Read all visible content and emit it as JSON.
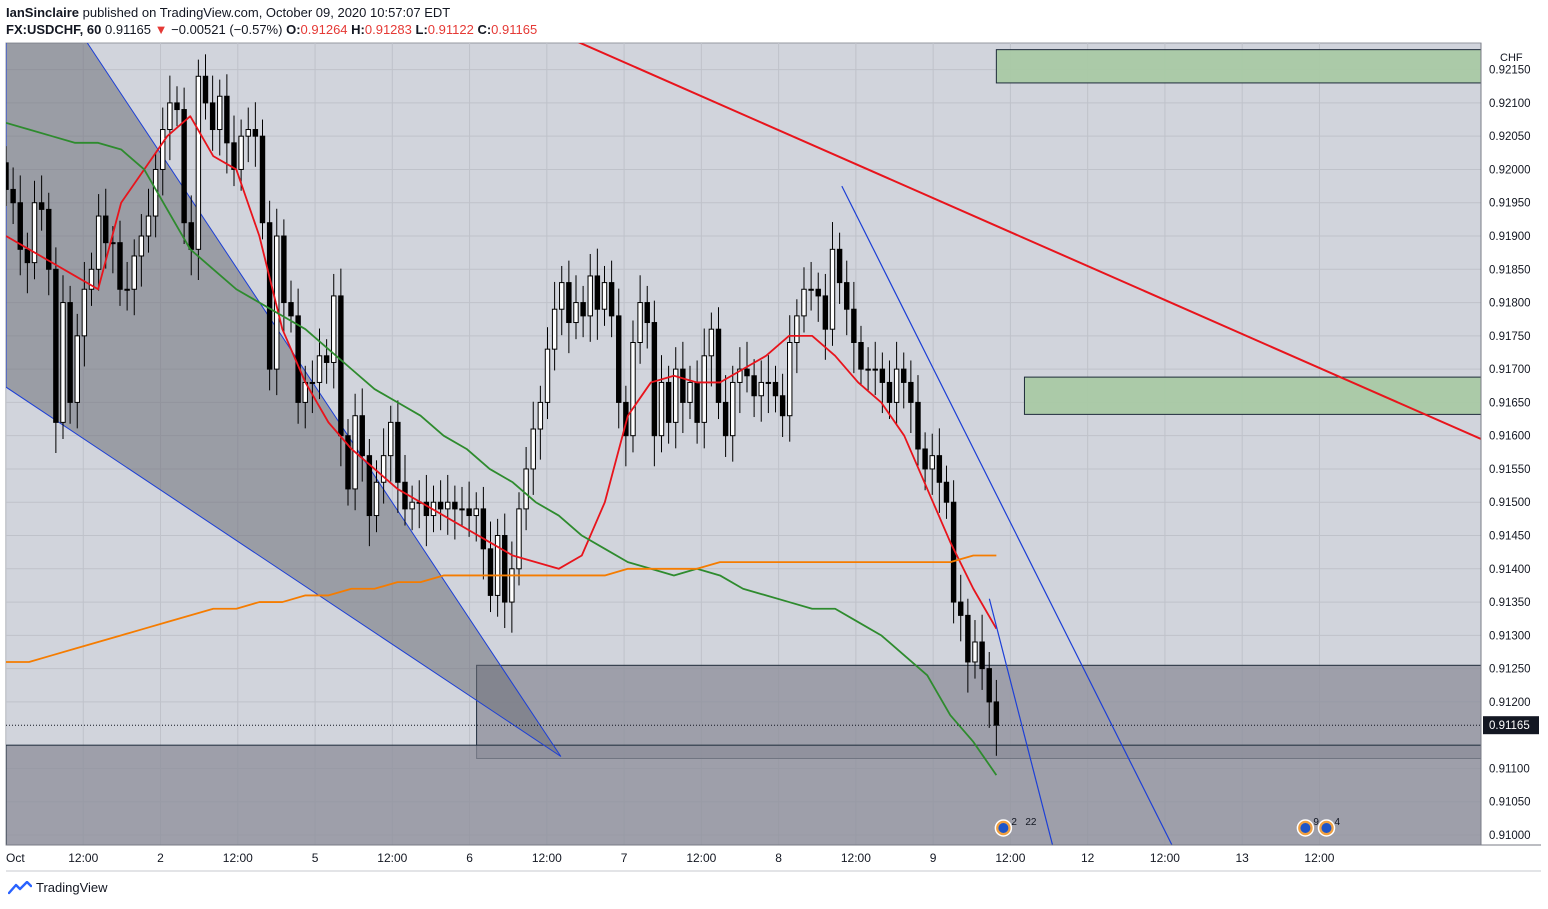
{
  "header": {
    "author": "IanSinclaire",
    "published_text": "published on TradingView.com, October 09, 2020 10:57:07 EDT",
    "symbol": "FX:USDCHF, 60",
    "last": "0.91165",
    "arrow": "▼",
    "change": "−0.00521 (−0.57%)",
    "o_label": "O:",
    "o_value": "0.91264",
    "h_label": "H:",
    "h_value": "0.91283",
    "l_label": "L:",
    "l_value": "0.91122",
    "c_label": "C:",
    "c_value": "0.91165"
  },
  "footer": {
    "brand": "TradingView",
    "logo_icon": "tradingview-logo-icon"
  },
  "colors": {
    "plot_bg": "#d1d4dc",
    "grid": "#bfc2ca",
    "ma_red": "#e8141c",
    "ma_green": "#2e8b2e",
    "ma_orange": "#f57c00",
    "trend_red": "#e8141c",
    "trend_blue": "#1c3fd6",
    "zone_green": "#a9c9a4",
    "zone_gray": "#8c8e9a",
    "wedge_fill": "#6e7079",
    "price_tag_bg": "#131722"
  },
  "chart_data": {
    "type": "candlestick",
    "title": "FX:USDCHF, 60",
    "currency_label": "CHF",
    "y_ticks": [
      "0.92150",
      "0.92100",
      "0.92050",
      "0.92000",
      "0.91950",
      "0.91900",
      "0.91850",
      "0.91800",
      "0.91750",
      "0.91700",
      "0.91650",
      "0.91600",
      "0.91550",
      "0.91500",
      "0.91450",
      "0.91400",
      "0.91350",
      "0.91300",
      "0.91250",
      "0.91200",
      "0.91100",
      "0.91050",
      "0.91000"
    ],
    "ylim": [
      0.90985,
      0.9219
    ],
    "x_ticks": [
      "Oct",
      "12:00",
      "2",
      "12:00",
      "5",
      "12:00",
      "6",
      "12:00",
      "7",
      "12:00",
      "8",
      "12:00",
      "9",
      "12:00",
      "12",
      "12:00",
      "13",
      "12:00"
    ],
    "x_bar_range": [
      0,
      210
    ],
    "x_tick_bars": [
      0,
      11,
      22,
      33,
      44,
      55,
      66,
      77,
      88,
      99,
      110,
      121,
      132,
      143,
      154,
      165,
      176,
      187
    ],
    "current_price": "0.91165",
    "candle_closes": [
      0.9197,
      0.9195,
      0.9188,
      0.9186,
      0.9195,
      0.9194,
      0.9185,
      0.9162,
      0.918,
      0.9165,
      0.9175,
      0.9182,
      0.9185,
      0.9193,
      0.9189,
      0.9189,
      0.9182,
      0.9182,
      0.9187,
      0.919,
      0.9193,
      0.92,
      0.9206,
      0.921,
      0.9209,
      0.9192,
      0.9188,
      0.9214,
      0.921,
      0.9206,
      0.9211,
      0.9204,
      0.92,
      0.9205,
      0.9206,
      0.9205,
      0.9192,
      0.917,
      0.919,
      0.918,
      0.9178,
      0.9165,
      0.9168,
      0.9168,
      0.9172,
      0.9171,
      0.9181,
      0.916,
      0.9152,
      0.9163,
      0.9157,
      0.9148,
      0.9153,
      0.9157,
      0.9162,
      0.9153,
      0.9149,
      0.915,
      0.915,
      0.9148,
      0.915,
      0.9149,
      0.915,
      0.9149,
      0.9149,
      0.9148,
      0.9149,
      0.9143,
      0.9136,
      0.9145,
      0.9135,
      0.914,
      0.9149,
      0.9155,
      0.9161,
      0.9165,
      0.9173,
      0.9179,
      0.9183,
      0.9177,
      0.918,
      0.9178,
      0.9184,
      0.9179,
      0.9183,
      0.9178,
      0.9165,
      0.916,
      0.9174,
      0.918,
      0.9177,
      0.916,
      0.9168,
      0.9162,
      0.917,
      0.9165,
      0.9168,
      0.9162,
      0.9172,
      0.9176,
      0.9165,
      0.916,
      0.9168,
      0.917,
      0.9169,
      0.9166,
      0.9168,
      0.9168,
      0.9166,
      0.9163,
      0.9174,
      0.9178,
      0.9182,
      0.9182,
      0.9181,
      0.9176,
      0.9188,
      0.9183,
      0.9179,
      0.9174,
      0.917,
      0.917,
      0.917,
      0.9168,
      0.9165,
      0.917,
      0.9168,
      0.9165,
      0.9158,
      0.9155,
      0.9157,
      0.9153,
      0.915,
      0.9135,
      0.9133,
      0.9126,
      0.9129,
      0.9125,
      0.912,
      0.91165
    ],
    "series": [
      {
        "name": "MA red",
        "values": [
          0.919,
          0.9188,
          0.9186,
          0.9184,
          0.9182,
          0.9195,
          0.92,
          0.9205,
          0.9208,
          0.9202,
          0.92,
          0.919,
          0.9176,
          0.9168,
          0.9162,
          0.9158,
          0.9155,
          0.9152,
          0.915,
          0.9148,
          0.9146,
          0.9144,
          0.9142,
          0.9141,
          0.914,
          0.9142,
          0.915,
          0.9163,
          0.9168,
          0.9169,
          0.9168,
          0.9168,
          0.917,
          0.9172,
          0.9175,
          0.9175,
          0.9172,
          0.9168,
          0.9165,
          0.916,
          0.9152,
          0.9144,
          0.9137,
          0.9131
        ]
      },
      {
        "name": "MA green",
        "values": [
          0.9207,
          0.9206,
          0.9205,
          0.9204,
          0.9204,
          0.9203,
          0.92,
          0.9194,
          0.9188,
          0.9185,
          0.9182,
          0.918,
          0.9178,
          0.9176,
          0.9173,
          0.917,
          0.9167,
          0.9165,
          0.9163,
          0.916,
          0.9158,
          0.9155,
          0.9153,
          0.915,
          0.9148,
          0.9145,
          0.9143,
          0.9141,
          0.914,
          0.9139,
          0.914,
          0.9139,
          0.9137,
          0.9136,
          0.9135,
          0.9134,
          0.9134,
          0.9132,
          0.913,
          0.9127,
          0.9124,
          0.9118,
          0.9114,
          0.9109
        ]
      },
      {
        "name": "MA orange",
        "values": [
          0.9126,
          0.9126,
          0.9127,
          0.9128,
          0.9129,
          0.913,
          0.9131,
          0.9132,
          0.9133,
          0.9134,
          0.9134,
          0.9135,
          0.9135,
          0.9136,
          0.9136,
          0.9137,
          0.9137,
          0.9138,
          0.9138,
          0.9139,
          0.9139,
          0.9139,
          0.9139,
          0.9139,
          0.9139,
          0.9139,
          0.9139,
          0.914,
          0.914,
          0.914,
          0.914,
          0.9141,
          0.9141,
          0.9141,
          0.9141,
          0.9141,
          0.9141,
          0.9141,
          0.9141,
          0.9141,
          0.9141,
          0.9141,
          0.9142,
          0.9142
        ]
      }
    ],
    "ma_x_range": [
      0,
      141
    ],
    "zones": [
      {
        "name": "green-zone-top",
        "x": [
          141,
          210
        ],
        "y": [
          0.9213,
          0.9218
        ]
      },
      {
        "name": "green-zone-mid",
        "x": [
          145,
          210
        ],
        "y": [
          0.91632,
          0.91688
        ]
      },
      {
        "name": "gray-zone-upper",
        "x": [
          67,
          210
        ],
        "y": [
          0.91115,
          0.91255
        ]
      },
      {
        "name": "gray-zone-lower",
        "x": [
          0,
          210
        ],
        "y": [
          0.90985,
          0.91135
        ]
      }
    ],
    "trendlines": [
      {
        "name": "red-downtrend",
        "color": "trend_red",
        "from": [
          71,
          0.9224
        ],
        "to": [
          210,
          0.91595
        ]
      },
      {
        "name": "blue-line-1",
        "color": "trend_blue",
        "from": [
          119,
          0.91975
        ],
        "to": [
          166,
          0.90985
        ]
      },
      {
        "name": "blue-line-2",
        "color": "trend_blue",
        "from": [
          140,
          0.91355
        ],
        "to": [
          149,
          0.90985
        ]
      }
    ],
    "wedge": {
      "apex": [
        79,
        0.91118
      ],
      "top": [
        0,
        0.92247
      ],
      "bottom": [
        0,
        0.91673
      ],
      "top_ext": [
        8,
        0.92247
      ]
    },
    "event_markers": [
      {
        "x": 142,
        "labels": [
          "2",
          "22"
        ]
      },
      {
        "x": 185,
        "labels": [
          "9"
        ]
      },
      {
        "x": 188,
        "labels": [
          "4"
        ]
      }
    ]
  }
}
